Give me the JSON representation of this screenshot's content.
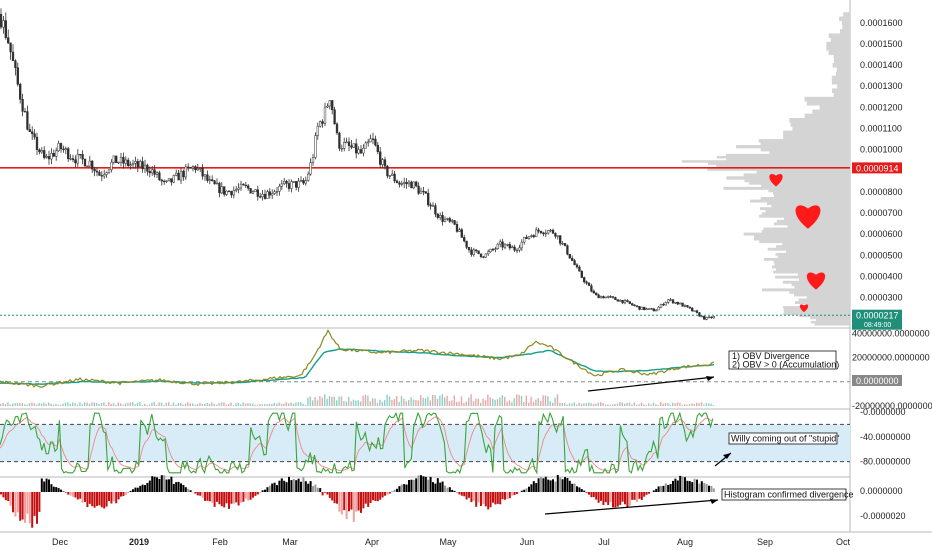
{
  "colors": {
    "up": "#2f2f2f",
    "down": "#2f2f2f",
    "red_line": "#e31b1b",
    "teal": "#1f8f7a",
    "obv_olive": "#8a8a20",
    "obv_signal": "#129e8a",
    "willy_green": "#3aa43a",
    "willy_signal": "#e88",
    "band_fill": "#d8ecf8",
    "hist_black": "#000000",
    "hist_red": "#c41010",
    "profile": "#d4d4d4",
    "heart": "#ff1a1a"
  },
  "chart_data": [
    {
      "type": "candlestick",
      "panel": "price",
      "x_labels": [
        "Dec",
        "2019",
        "Feb",
        "Mar",
        "Apr",
        "May",
        "Jun",
        "Jul",
        "Aug",
        "Sep",
        "Oct"
      ],
      "y_ticks": [
        "0.0001600",
        "0.0001500",
        "0.0001400",
        "0.0001300",
        "0.0001200",
        "0.0001100",
        "0.0001000",
        "0.0000800",
        "0.0000700",
        "0.0000600",
        "0.0000500",
        "0.0000400",
        "0.0000300"
      ],
      "ylim": [
        1.85e-05,
        0.000167
      ],
      "price_path": [
        [
          0,
          0.000164
        ],
        [
          8,
          0.000152
        ],
        [
          18,
          0.00013
        ],
        [
          30,
          0.000107
        ],
        [
          45,
          9.5e-05
        ],
        [
          60,
          0.000101
        ],
        [
          75,
          9.6e-05
        ],
        [
          90,
          9.4e-05
        ],
        [
          100,
          8.8e-05
        ],
        [
          115,
          9.5e-05
        ],
        [
          130,
          9.3e-05
        ],
        [
          150,
          9.1e-05
        ],
        [
          165,
          8.3e-05
        ],
        [
          180,
          8.8e-05
        ],
        [
          195,
          9.2e-05
        ],
        [
          210,
          8.4e-05
        ],
        [
          225,
          8e-05
        ],
        [
          245,
          8.2e-05
        ],
        [
          265,
          7.9e-05
        ],
        [
          285,
          8.3e-05
        ],
        [
          305,
          8.4e-05
        ],
        [
          312,
          9.5e-05
        ],
        [
          318,
          0.000111
        ],
        [
          324,
          0.000116
        ],
        [
          330,
          0.000126
        ],
        [
          338,
          0.000103
        ],
        [
          350,
          0.000101
        ],
        [
          362,
          9.8e-05
        ],
        [
          372,
          0.000105
        ],
        [
          385,
          9e-05
        ],
        [
          400,
          8.4e-05
        ],
        [
          412,
          8.4e-05
        ],
        [
          425,
          7.8e-05
        ],
        [
          440,
          6.8e-05
        ],
        [
          455,
          6.4e-05
        ],
        [
          470,
          5.2e-05
        ],
        [
          485,
          5e-05
        ],
        [
          500,
          5.5e-05
        ],
        [
          515,
          5.3e-05
        ],
        [
          528,
          5.9e-05
        ],
        [
          540,
          6.2e-05
        ],
        [
          555,
          6.1e-05
        ],
        [
          568,
          5.1e-05
        ],
        [
          580,
          4.1e-05
        ],
        [
          595,
          3.1e-05
        ],
        [
          610,
          3e-05
        ],
        [
          625,
          2.8e-05
        ],
        [
          640,
          2.5e-05
        ],
        [
          655,
          2.4e-05
        ],
        [
          668,
          2.9e-05
        ],
        [
          680,
          2.7e-05
        ],
        [
          692,
          2.4e-05
        ],
        [
          705,
          2e-05
        ],
        [
          715,
          2.1e-05
        ]
      ],
      "resistance_line": {
        "value": 9.14e-05,
        "label": "0.0000914"
      },
      "last_price": {
        "value": 2.17e-05,
        "label": "0.0000217",
        "countdown": "08:49:00"
      },
      "volume_profile": [
        [
          0.000165,
          0.06
        ],
        [
          0.000155,
          0.14
        ],
        [
          0.000145,
          0.1
        ],
        [
          0.000135,
          0.11
        ],
        [
          0.000125,
          0.25
        ],
        [
          0.000115,
          0.37
        ],
        [
          0.000105,
          0.65
        ],
        [
          9.8e-05,
          0.92
        ],
        [
          9.3e-05,
          0.8
        ],
        [
          8.6e-05,
          0.7
        ],
        [
          8e-05,
          0.55
        ],
        [
          7.4e-05,
          0.63
        ],
        [
          6.8e-05,
          0.48
        ],
        [
          6.2e-05,
          0.6
        ],
        [
          5.6e-05,
          0.45
        ],
        [
          5e-05,
          0.55
        ],
        [
          4.4e-05,
          0.43
        ],
        [
          3.8e-05,
          0.47
        ],
        [
          3.2e-05,
          0.35
        ],
        [
          2.6e-05,
          0.37
        ],
        [
          2.2e-05,
          0.3
        ]
      ],
      "hearts": [
        {
          "x": 776,
          "price": 8.6e-05,
          "size": 16
        },
        {
          "x": 808,
          "price": 6.9e-05,
          "size": 30
        },
        {
          "x": 816,
          "price": 3.85e-05,
          "size": 22
        },
        {
          "x": 804,
          "price": 2.53e-05,
          "size": 10
        }
      ]
    },
    {
      "type": "line",
      "panel": "obv",
      "y_ticks": [
        "40000000.0000000",
        "20000000.0000000",
        "0.0000000",
        "-20000000.0000000"
      ],
      "ylim": [
        -20000000,
        42000000
      ],
      "zero_label": "0.0000000",
      "obv_path": [
        [
          0,
          0
        ],
        [
          40,
          -3500000
        ],
        [
          80,
          2000000
        ],
        [
          120,
          -1000000
        ],
        [
          160,
          1500000
        ],
        [
          200,
          -2000000
        ],
        [
          240,
          0
        ],
        [
          280,
          3500000
        ],
        [
          300,
          5000000
        ],
        [
          312,
          18000000
        ],
        [
          320,
          30000000
        ],
        [
          328,
          42000000
        ],
        [
          340,
          27000000
        ],
        [
          380,
          24000000
        ],
        [
          420,
          26000000
        ],
        [
          460,
          23000000
        ],
        [
          500,
          19000000
        ],
        [
          520,
          22000000
        ],
        [
          535,
          33000000
        ],
        [
          550,
          29000000
        ],
        [
          570,
          18000000
        ],
        [
          595,
          5000000
        ],
        [
          620,
          10000000
        ],
        [
          650,
          6000000
        ],
        [
          680,
          12000000
        ],
        [
          715,
          15000000
        ]
      ],
      "signal_path": [
        [
          0,
          -1000000
        ],
        [
          40,
          -2000000
        ],
        [
          80,
          0
        ],
        [
          120,
          -500000
        ],
        [
          160,
          500000
        ],
        [
          200,
          -1000000
        ],
        [
          240,
          -500000
        ],
        [
          280,
          2000000
        ],
        [
          305,
          3500000
        ],
        [
          315,
          15000000
        ],
        [
          325,
          25000000
        ],
        [
          340,
          27000000
        ],
        [
          380,
          25500000
        ],
        [
          420,
          24000000
        ],
        [
          460,
          21500000
        ],
        [
          500,
          20000000
        ],
        [
          530,
          23000000
        ],
        [
          550,
          26000000
        ],
        [
          570,
          18000000
        ],
        [
          595,
          9000000
        ],
        [
          620,
          8500000
        ],
        [
          650,
          9500000
        ],
        [
          680,
          12000000
        ],
        [
          715,
          14000000
        ]
      ],
      "annotation": [
        "1) OBV Divergence",
        "2) OBV > 0 (Accumulation)"
      ]
    },
    {
      "type": "line",
      "panel": "willy",
      "y_ticks": [
        "-0.0000000",
        "-40.0000000",
        "-80.0000000"
      ],
      "ylim": [
        -100,
        0
      ],
      "band": [
        -20,
        -80
      ],
      "annotation": "Willy coming out of \"stupid\""
    },
    {
      "type": "bar",
      "panel": "histogram",
      "y_ticks": [
        "0.0000000",
        "-0.0000020"
      ],
      "annotation": "Histogram confirmed divergence"
    }
  ]
}
